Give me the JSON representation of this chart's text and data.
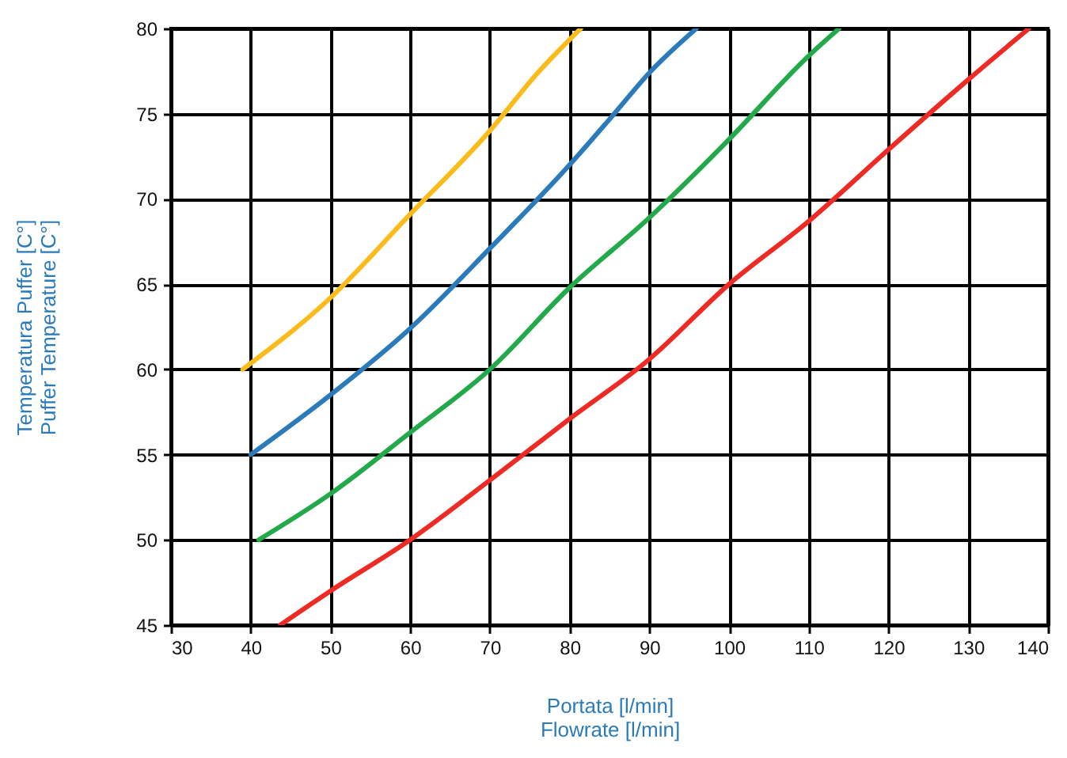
{
  "chart_data": {
    "type": "line",
    "xlabel": "Portata [l/min]\nFlowrate [l/min]",
    "ylabel": "Temperatura Puffer [C°]\nPuffer Temperature [C°]",
    "xlim": [
      30,
      140
    ],
    "xticks": [
      30,
      40,
      50,
      60,
      70,
      80,
      90,
      100,
      110,
      120,
      130,
      140
    ],
    "ylim": [
      45,
      80
    ],
    "yticks": [
      45,
      50,
      55,
      60,
      65,
      70,
      75,
      80
    ],
    "grid": true,
    "line_style": "solid",
    "marker": "none",
    "series": [
      {
        "color": "#fbbb1b",
        "x": [
          39,
          50,
          60,
          70,
          76,
          81.4
        ],
        "values": [
          60,
          64.2,
          69.1,
          74,
          77.4,
          80
        ]
      },
      {
        "color": "#2b7bba",
        "x": [
          40,
          50,
          60,
          70,
          80,
          85.6,
          90,
          95.9
        ],
        "values": [
          55,
          58.5,
          62.4,
          67.1,
          72,
          75,
          77.4,
          80
        ]
      },
      {
        "color": "#22a94a",
        "x": [
          41,
          50,
          60,
          70,
          80,
          90,
          100,
          110,
          113.8
        ],
        "values": [
          50,
          52.7,
          56.3,
          60,
          64.8,
          68.9,
          73.5,
          78.4,
          80
        ]
      },
      {
        "color": "#ee2a24",
        "x": [
          43.7,
          50,
          60,
          70,
          80,
          90,
          100,
          110,
          120,
          130,
          137.6
        ],
        "values": [
          45,
          47,
          50,
          53.5,
          57.1,
          60.6,
          65,
          68.7,
          72.9,
          77,
          80
        ]
      }
    ]
  }
}
